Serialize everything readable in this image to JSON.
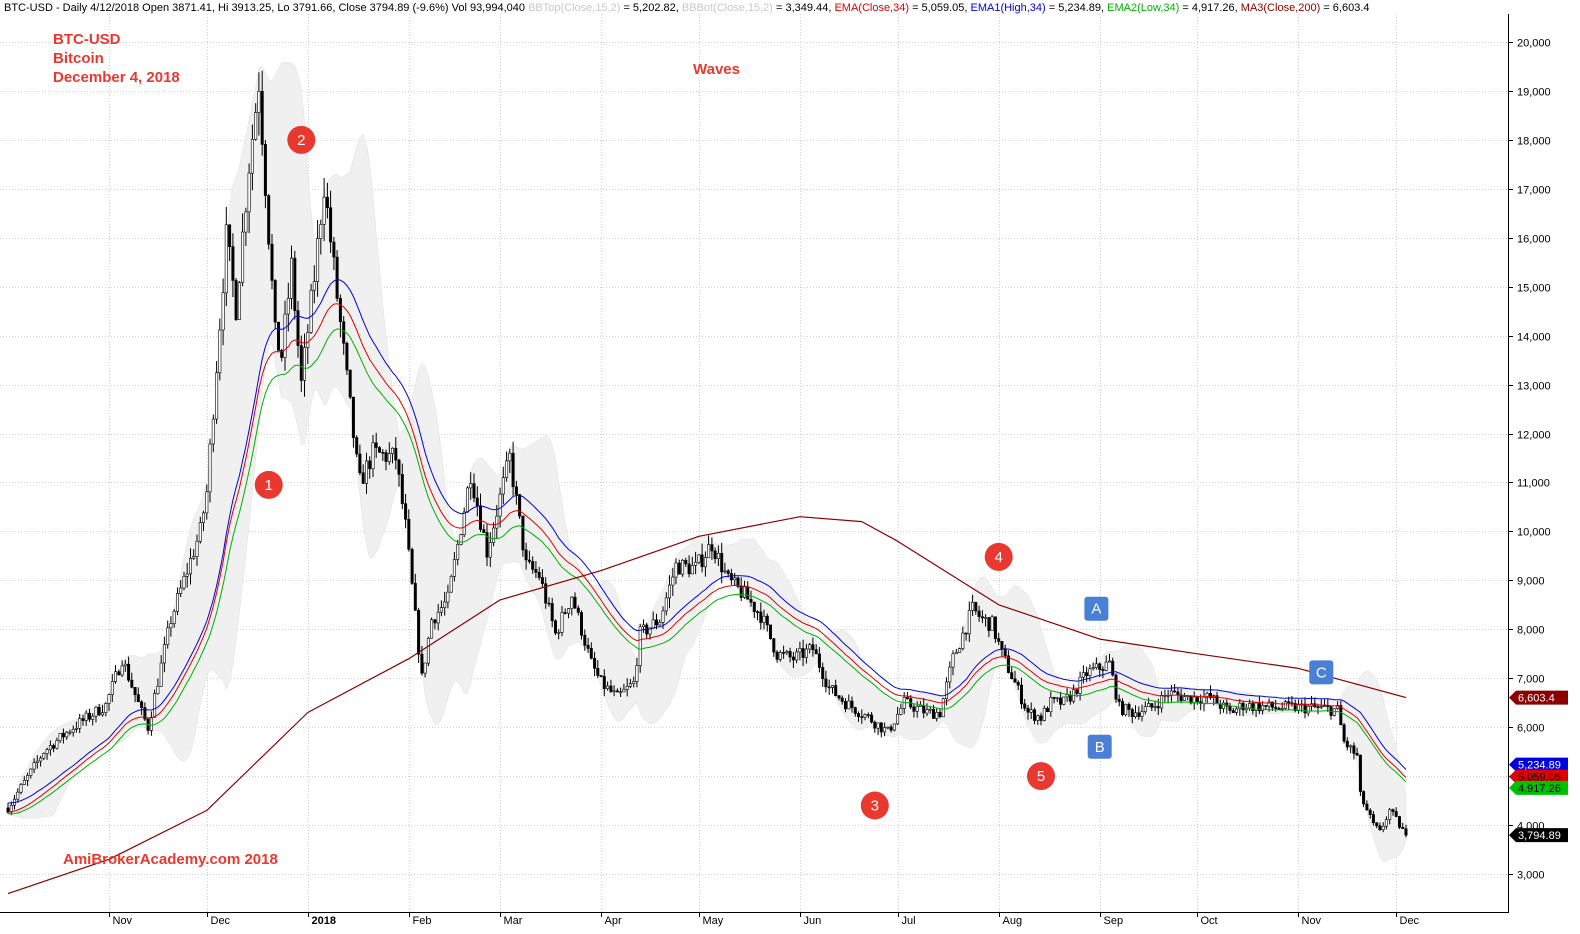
{
  "header": {
    "segments": [
      {
        "text": "BTC-USD - Daily 4/12/2018 Open 3871.41, Hi 3913.25, Lo 3791.66, Close 3794.89 (-9.6%) Vol 93,994,040 ",
        "color": "#000000"
      },
      {
        "text": "BBTop(Close,15,2)",
        "color": "#c8c8c8"
      },
      {
        "text": " = 5,202.82, ",
        "color": "#000000"
      },
      {
        "text": "BBBot(Close,15,2)",
        "color": "#c8c8c8"
      },
      {
        "text": " = 3,349.44, ",
        "color": "#000000"
      },
      {
        "text": "EMA(Close,34)",
        "color": "#e00000"
      },
      {
        "text": " = 5,059.05, ",
        "color": "#000000"
      },
      {
        "text": "EMA1(High,34)",
        "color": "#0000e0"
      },
      {
        "text": " = 5,234.89, ",
        "color": "#000000"
      },
      {
        "text": "EMA2(Low,34)",
        "color": "#00b000"
      },
      {
        "text": " = 4,917.26, ",
        "color": "#000000"
      },
      {
        "text": "MA3(Close,200)",
        "color": "#8b0000"
      },
      {
        "text": " = 6,603.4",
        "color": "#000000"
      }
    ]
  },
  "annotations": {
    "title_lines": [
      "BTC-USD",
      "Bitcoin",
      "December 4, 2018"
    ],
    "waves_label": "Waves",
    "watermark": "AmiBrokerAcademy.com  2018"
  },
  "colors": {
    "ema_close": "#e00000",
    "ema_high": "#0000e0",
    "ema_low": "#00b000",
    "ma200": "#8b0000",
    "bollinger_fill": "#f0f0f0",
    "wave_marker": "#e8382f",
    "abc_marker": "#4a7fd6",
    "grid": "#d0d0d0"
  },
  "wave_markers": [
    {
      "label": "1",
      "date": "2017-12-20",
      "price": 10950
    },
    {
      "label": "2",
      "date": "2017-12-30",
      "price": 18000
    },
    {
      "label": "3",
      "date": "2018-06-24",
      "price": 4400
    },
    {
      "label": "4",
      "date": "2018-08-01",
      "price": 9480
    },
    {
      "label": "5",
      "date": "2018-08-14",
      "price": 5000
    }
  ],
  "abc_markers": [
    {
      "label": "A",
      "date": "2018-08-31",
      "price": 8420
    },
    {
      "label": "B",
      "date": "2018-09-01",
      "price": 5600
    },
    {
      "label": "C",
      "date": "2018-11-08",
      "price": 7120
    }
  ],
  "price_tags": [
    {
      "value": "6,603.4",
      "price": 6603.4,
      "bg": "#8b0000",
      "fg": "#ffffff"
    },
    {
      "value": "5,234.89",
      "price": 5234.89,
      "bg": "#0000e0",
      "fg": "#ffffff"
    },
    {
      "value": "5,059.05",
      "price": 4990,
      "bg": "#e00000",
      "fg": "#000000"
    },
    {
      "value": "4,917.26",
      "price": 4760,
      "bg": "#00c000",
      "fg": "#000000"
    },
    {
      "value": "3,794.89",
      "price": 3794.89,
      "bg": "#000000",
      "fg": "#ffffff"
    }
  ],
  "chart_data": {
    "type": "line",
    "title": "",
    "xlabel": "",
    "ylabel": "",
    "x_range": [
      "2017-10-01",
      "2018-12-04"
    ],
    "ylim": [
      2200,
      20400
    ],
    "grid": true,
    "y_ticks": [
      3000,
      4000,
      5000,
      6000,
      7000,
      8000,
      9000,
      10000,
      11000,
      12000,
      13000,
      14000,
      15000,
      16000,
      17000,
      18000,
      19000,
      20000
    ],
    "y_tick_labels": [
      "3,000",
      "4,000",
      "5,000",
      "6,000",
      "7,000",
      "8,000",
      "9,000",
      "10,000",
      "11,000",
      "12,000",
      "13,000",
      "14,000",
      "15,000",
      "16,000",
      "17,000",
      "18,000",
      "19,000",
      "20,000"
    ],
    "x_ticks": [
      {
        "label": "Nov",
        "date": "2017-11-01",
        "bold": false
      },
      {
        "label": "Dec",
        "date": "2017-12-01",
        "bold": false
      },
      {
        "label": "2018",
        "date": "2018-01-01",
        "bold": true
      },
      {
        "label": "Feb",
        "date": "2018-02-01",
        "bold": false
      },
      {
        "label": "Mar",
        "date": "2018-03-01",
        "bold": false
      },
      {
        "label": "Apr",
        "date": "2018-04-01",
        "bold": false
      },
      {
        "label": "May",
        "date": "2018-05-01",
        "bold": false
      },
      {
        "label": "Jun",
        "date": "2018-06-01",
        "bold": false
      },
      {
        "label": "Jul",
        "date": "2018-07-01",
        "bold": false
      },
      {
        "label": "Aug",
        "date": "2018-08-01",
        "bold": false
      },
      {
        "label": "Sep",
        "date": "2018-09-01",
        "bold": false
      },
      {
        "label": "Oct",
        "date": "2018-10-01",
        "bold": false
      },
      {
        "label": "Nov",
        "date": "2018-11-01",
        "bold": false
      },
      {
        "label": "Dec",
        "date": "2018-12-01",
        "bold": false
      }
    ],
    "close_keypoints": [
      [
        "2017-10-01",
        4350
      ],
      [
        "2017-10-12",
        5500
      ],
      [
        "2017-10-20",
        5950
      ],
      [
        "2017-10-31",
        6450
      ],
      [
        "2017-11-05",
        7400
      ],
      [
        "2017-11-11",
        6300
      ],
      [
        "2017-11-13",
        6000
      ],
      [
        "2017-11-20",
        8200
      ],
      [
        "2017-11-29",
        10000
      ],
      [
        "2017-12-01",
        10800
      ],
      [
        "2017-12-07",
        16000
      ],
      [
        "2017-12-10",
        14600
      ],
      [
        "2017-12-14",
        17500
      ],
      [
        "2017-12-17",
        19200
      ],
      [
        "2017-12-22",
        14000
      ],
      [
        "2017-12-24",
        13600
      ],
      [
        "2017-12-27",
        15400
      ],
      [
        "2017-12-30",
        13000
      ],
      [
        "2018-01-03",
        15200
      ],
      [
        "2018-01-06",
        17100
      ],
      [
        "2018-01-10",
        14800
      ],
      [
        "2018-01-16",
        11400
      ],
      [
        "2018-01-17",
        11000
      ],
      [
        "2018-01-21",
        11600
      ],
      [
        "2018-01-28",
        11500
      ],
      [
        "2018-01-31",
        10100
      ],
      [
        "2018-02-05",
        7000
      ],
      [
        "2018-02-08",
        8200
      ],
      [
        "2018-02-13",
        8600
      ],
      [
        "2018-02-20",
        11200
      ],
      [
        "2018-02-25",
        9600
      ],
      [
        "2018-03-04",
        11500
      ],
      [
        "2018-03-09",
        9300
      ],
      [
        "2018-03-13",
        9100
      ],
      [
        "2018-03-18",
        7900
      ],
      [
        "2018-03-23",
        8700
      ],
      [
        "2018-03-29",
        7300
      ],
      [
        "2018-04-01",
        6900
      ],
      [
        "2018-04-06",
        6600
      ],
      [
        "2018-04-11",
        6900
      ],
      [
        "2018-04-13",
        7900
      ],
      [
        "2018-04-19",
        8200
      ],
      [
        "2018-04-24",
        9300
      ],
      [
        "2018-04-30",
        9250
      ],
      [
        "2018-05-05",
        9750
      ],
      [
        "2018-05-10",
        9000
      ],
      [
        "2018-05-15",
        8700
      ],
      [
        "2018-05-20",
        8300
      ],
      [
        "2018-05-25",
        7500
      ],
      [
        "2018-05-30",
        7400
      ],
      [
        "2018-06-05",
        7600
      ],
      [
        "2018-06-10",
        6800
      ],
      [
        "2018-06-15",
        6500
      ],
      [
        "2018-06-22",
        6200
      ],
      [
        "2018-06-28",
        5900
      ],
      [
        "2018-07-03",
        6500
      ],
      [
        "2018-07-10",
        6300
      ],
      [
        "2018-07-14",
        6300
      ],
      [
        "2018-07-18",
        7400
      ],
      [
        "2018-07-24",
        8400
      ],
      [
        "2018-07-27",
        8200
      ],
      [
        "2018-07-30",
        8100
      ],
      [
        "2018-08-02",
        7500
      ],
      [
        "2018-08-06",
        6900
      ],
      [
        "2018-08-10",
        6300
      ],
      [
        "2018-08-14",
        6200
      ],
      [
        "2018-08-17",
        6500
      ],
      [
        "2018-08-21",
        6500
      ],
      [
        "2018-08-24",
        6700
      ],
      [
        "2018-08-28",
        7100
      ],
      [
        "2018-09-04",
        7300
      ],
      [
        "2018-09-07",
        6400
      ],
      [
        "2018-09-11",
        6300
      ],
      [
        "2018-09-17",
        6400
      ],
      [
        "2018-09-22",
        6700
      ],
      [
        "2018-09-28",
        6600
      ],
      [
        "2018-10-05",
        6600
      ],
      [
        "2018-10-11",
        6300
      ],
      [
        "2018-10-15",
        6450
      ],
      [
        "2018-10-25",
        6400
      ],
      [
        "2018-11-05",
        6400
      ],
      [
        "2018-11-13",
        6350
      ],
      [
        "2018-11-15",
        5700
      ],
      [
        "2018-11-19",
        5400
      ],
      [
        "2018-11-20",
        4600
      ],
      [
        "2018-11-24",
        4000
      ],
      [
        "2018-11-26",
        3850
      ],
      [
        "2018-11-29",
        4300
      ],
      [
        "2018-12-01",
        4100
      ],
      [
        "2018-12-04",
        3794.89
      ]
    ],
    "ma200_keypoints": [
      [
        "2017-10-01",
        2600
      ],
      [
        "2017-11-01",
        3300
      ],
      [
        "2017-12-01",
        4300
      ],
      [
        "2018-01-01",
        6300
      ],
      [
        "2018-02-01",
        7400
      ],
      [
        "2018-03-01",
        8600
      ],
      [
        "2018-04-01",
        9200
      ],
      [
        "2018-05-01",
        9900
      ],
      [
        "2018-06-01",
        10300
      ],
      [
        "2018-06-20",
        10200
      ],
      [
        "2018-07-01",
        9800
      ],
      [
        "2018-08-01",
        8500
      ],
      [
        "2018-09-01",
        7800
      ],
      [
        "2018-10-01",
        7500
      ],
      [
        "2018-11-01",
        7200
      ],
      [
        "2018-12-04",
        6603.4
      ]
    ],
    "series": [
      {
        "name": "EMA(Close,34)",
        "last": 5059.05
      },
      {
        "name": "EMA1(High,34)",
        "last": 5234.89
      },
      {
        "name": "EMA2(Low,34)",
        "last": 4917.26
      },
      {
        "name": "MA3(Close,200)",
        "last": 6603.4
      },
      {
        "name": "BBTop(Close,15,2)",
        "last": 5202.82
      },
      {
        "name": "BBBot(Close,15,2)",
        "last": 3349.44
      }
    ]
  }
}
